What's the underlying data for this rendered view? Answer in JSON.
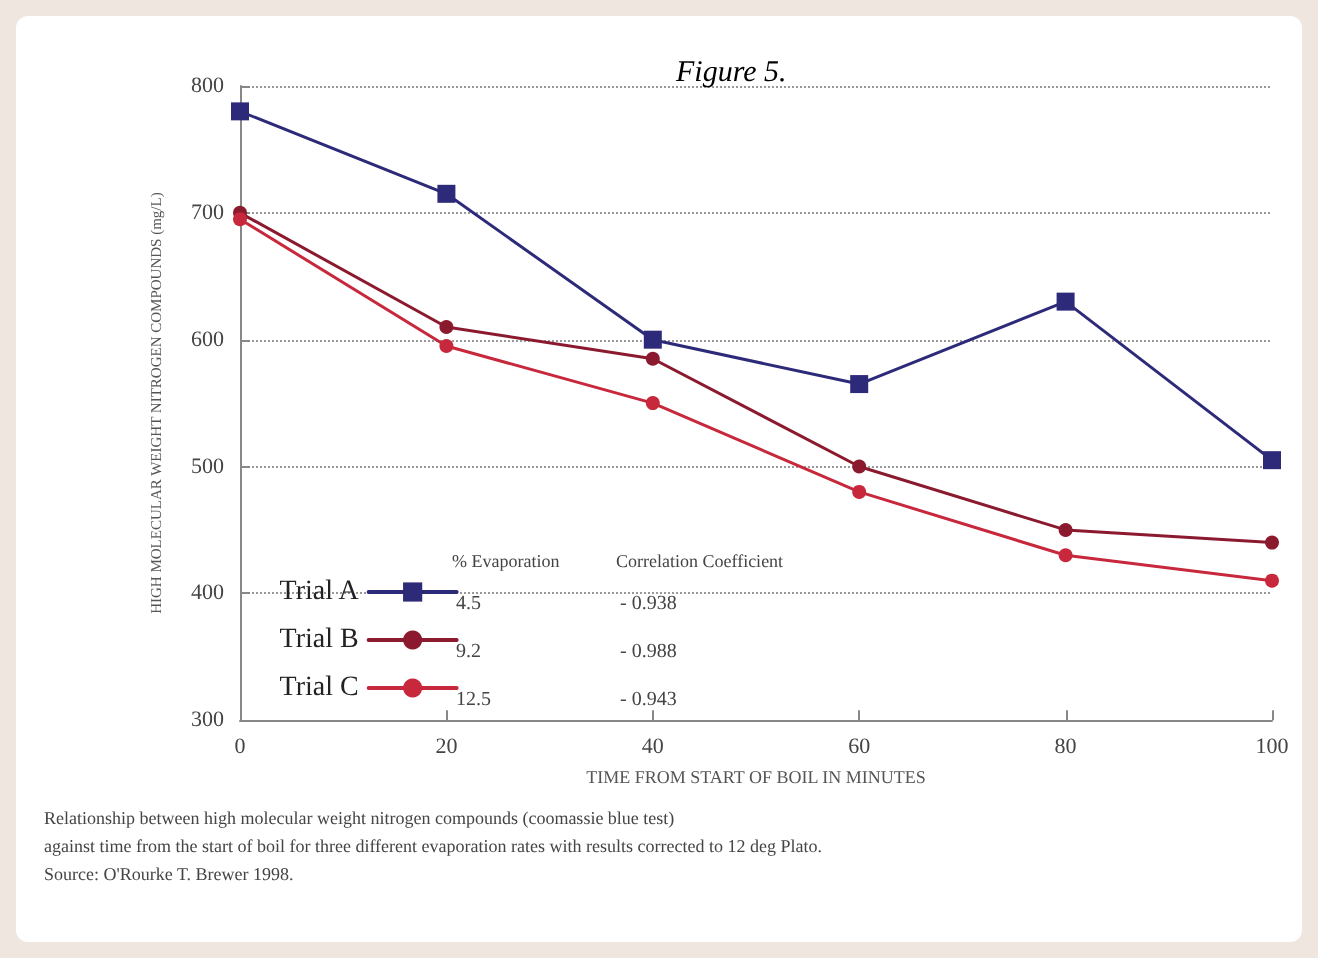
{
  "chart_data": {
    "type": "line",
    "title": "Figure 5.",
    "xlabel": "TIME FROM START OF BOIL IN MINUTES",
    "ylabel": "HIGH MOLECULAR WEIGHT NITROGEN COMPOUNDS (mg/L)",
    "x": [
      0,
      20,
      40,
      60,
      80,
      100
    ],
    "series": [
      {
        "name": "Trial A",
        "color": "#2e2a7a",
        "marker": "square",
        "values": [
          780,
          715,
          600,
          565,
          630,
          505
        ]
      },
      {
        "name": "Trial B",
        "color": "#8b1a2e",
        "marker": "circle",
        "values": [
          700,
          610,
          585,
          500,
          450,
          440
        ]
      },
      {
        "name": "Trial C",
        "color": "#c8283c",
        "marker": "circle",
        "values": [
          695,
          595,
          550,
          480,
          430,
          410
        ]
      }
    ],
    "xlim": [
      0,
      100
    ],
    "xticks": [
      0,
      20,
      40,
      60,
      80,
      100
    ],
    "ylim": [
      300,
      800
    ],
    "yticks": [
      300,
      400,
      500,
      600,
      700,
      800
    ],
    "grid": "y",
    "legend": "bottom left",
    "line_style": "solid",
    "annotations": [
      "% Evaporation",
      "Correlation Coefficient",
      "4.5",
      "- 0.938",
      "9.2",
      "- 0.988",
      "12.5",
      "- 0.943",
      "Relationship between high molecular weight nitrogen compounds (coomassie blue test)",
      "against time from the start of boil for three different evaporation rates with results corrected to 12 deg Plato.",
      "Source: O'Rourke T. Brewer 1998."
    ]
  }
}
